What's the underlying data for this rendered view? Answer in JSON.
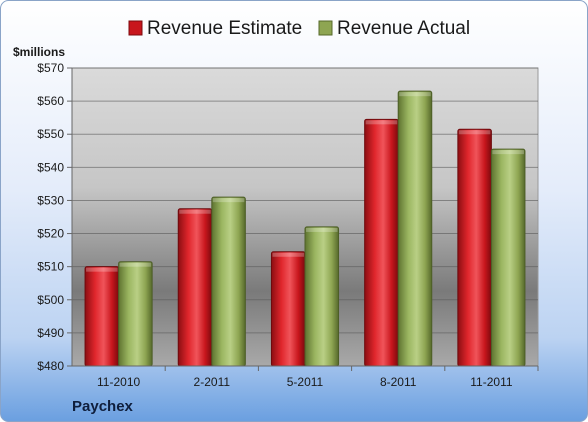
{
  "chart_data": {
    "type": "bar",
    "title": "",
    "company": "Paychex",
    "ylabel": "$millions",
    "xlabel": "",
    "categories": [
      "11-2010",
      "2-2011",
      "5-2011",
      "8-2011",
      "11-2011"
    ],
    "series": [
      {
        "name": "Revenue Estimate",
        "color": "#c8161d",
        "values": [
          510,
          527.5,
          514.5,
          554.5,
          551.5
        ]
      },
      {
        "name": "Revenue Actual",
        "color": "#8ea552",
        "values": [
          511.5,
          531,
          522,
          563,
          545.5
        ]
      }
    ],
    "ylim": [
      480,
      570
    ],
    "yticks": [
      480,
      490,
      500,
      510,
      520,
      530,
      540,
      550,
      560,
      570
    ],
    "ytick_labels": [
      "$480",
      "$490",
      "$500",
      "$510",
      "$520",
      "$530",
      "$540",
      "$550",
      "$560",
      "$570"
    ],
    "grid": true,
    "legend_position": "top"
  }
}
